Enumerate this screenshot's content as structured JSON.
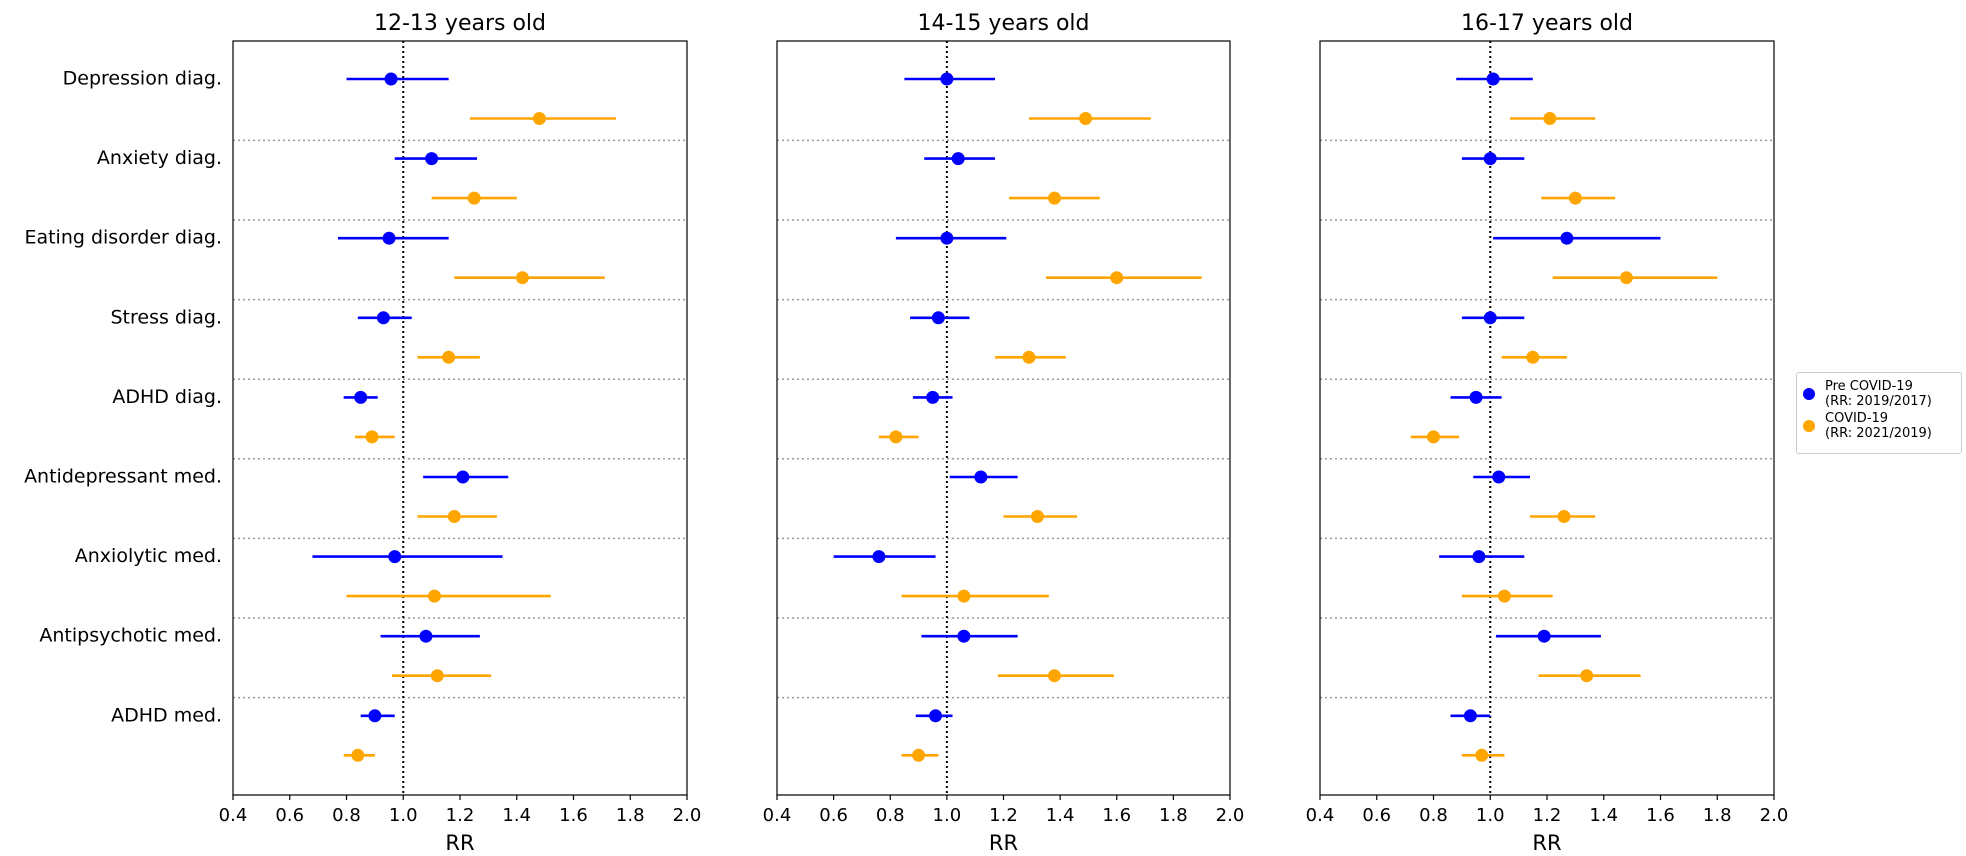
{
  "chart_data": {
    "type": "forest",
    "categories": [
      "Depression diag.",
      "Anxiety diag.",
      "Eating disorder diag.",
      "Stress diag.",
      "ADHD diag.",
      "Antidepressant med.",
      "Anxiolytic med.",
      "Antipsychotic med.",
      "ADHD med."
    ],
    "series": [
      {
        "name": "Pre COVID-19\n(RR: 2019/2017)",
        "color": "#0000ff"
      },
      {
        "name": "COVID-19\n(RR: 2021/2019)",
        "color": "#ffa500"
      }
    ],
    "xlabel": "RR",
    "xlim": [
      0.4,
      2.0
    ],
    "xticks": [
      0.4,
      0.6,
      0.8,
      {
        "value": 1.0,
        "label": "1.0"
      },
      1.2,
      1.4,
      1.6,
      1.8,
      {
        "value": 2.0,
        "label": "2.0"
      }
    ],
    "reference_line": 1,
    "legend": "right",
    "panels": [
      {
        "title": "12-13 years old",
        "series": [
          {
            "values": [
              0.957,
              1.1,
              0.95,
              0.93,
              0.85,
              1.21,
              0.97,
              1.08,
              0.9
            ],
            "lower": [
              0.8,
              0.97,
              0.77,
              0.84,
              0.79,
              1.07,
              0.68,
              0.92,
              0.85
            ],
            "upper": [
              1.16,
              1.26,
              1.16,
              1.03,
              0.91,
              1.37,
              1.35,
              1.27,
              0.97
            ]
          },
          {
            "values": [
              1.48,
              1.25,
              1.42,
              1.16,
              0.89,
              1.18,
              1.11,
              1.12,
              0.84
            ],
            "lower": [
              1.235,
              1.1,
              1.18,
              1.05,
              0.83,
              1.05,
              0.8,
              0.96,
              0.79
            ],
            "upper": [
              1.75,
              1.4,
              1.71,
              1.27,
              0.97,
              1.33,
              1.52,
              1.31,
              0.9
            ]
          }
        ]
      },
      {
        "title": "14-15 years old",
        "series": [
          {
            "values": [
              1.0,
              1.04,
              1.0,
              0.97,
              0.95,
              1.12,
              0.76,
              1.06,
              0.96
            ],
            "lower": [
              0.85,
              0.92,
              0.82,
              0.87,
              0.88,
              1.01,
              0.6,
              0.91,
              0.89
            ],
            "upper": [
              1.17,
              1.17,
              1.21,
              1.08,
              1.02,
              1.25,
              0.96,
              1.25,
              1.02
            ]
          },
          {
            "values": [
              1.49,
              1.38,
              1.6,
              1.29,
              0.82,
              1.32,
              1.06,
              1.38,
              0.9
            ],
            "lower": [
              1.29,
              1.22,
              1.35,
              1.17,
              0.76,
              1.2,
              0.84,
              1.18,
              0.84
            ],
            "upper": [
              1.72,
              1.54,
              1.9,
              1.42,
              0.9,
              1.46,
              1.36,
              1.59,
              0.97
            ]
          }
        ]
      },
      {
        "title": "16-17 years old",
        "series": [
          {
            "values": [
              1.01,
              1.0,
              1.27,
              1.0,
              0.95,
              1.03,
              0.96,
              1.19,
              0.93
            ],
            "lower": [
              0.88,
              0.9,
              1.01,
              0.9,
              0.86,
              0.94,
              0.82,
              1.02,
              0.86
            ],
            "upper": [
              1.15,
              1.12,
              1.6,
              1.12,
              1.04,
              1.14,
              1.12,
              1.39,
              1.0
            ]
          },
          {
            "values": [
              1.21,
              1.3,
              1.48,
              1.15,
              0.8,
              1.26,
              1.05,
              1.34,
              0.97
            ],
            "lower": [
              1.07,
              1.18,
              1.22,
              1.04,
              0.72,
              1.14,
              0.9,
              1.17,
              0.9
            ],
            "upper": [
              1.37,
              1.44,
              1.8,
              1.27,
              0.89,
              1.37,
              1.22,
              1.53,
              1.05
            ]
          }
        ]
      }
    ]
  }
}
